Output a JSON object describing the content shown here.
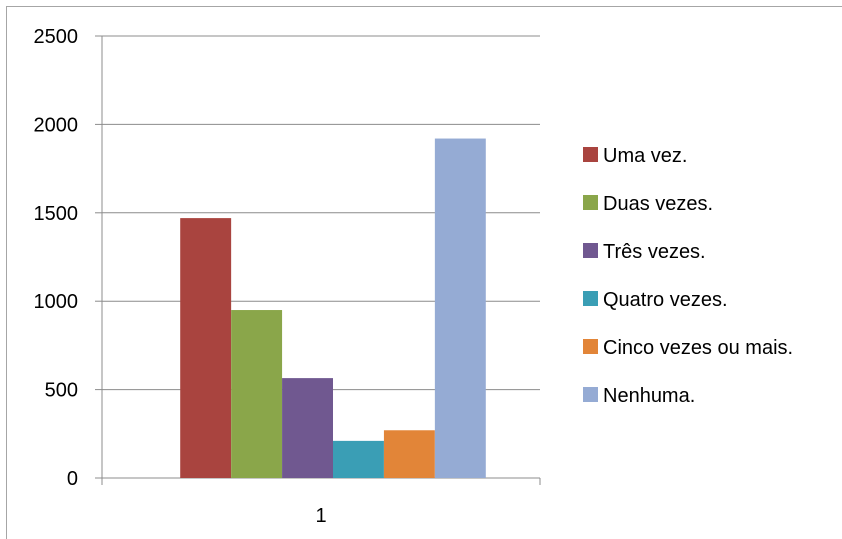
{
  "chart_data": {
    "type": "bar",
    "categories": [
      "1"
    ],
    "series": [
      {
        "name": "Uma vez.",
        "values": [
          1470
        ],
        "color": "#a9443f"
      },
      {
        "name": "Duas vezes.",
        "values": [
          950
        ],
        "color": "#8aa64a"
      },
      {
        "name": "Três vezes.",
        "values": [
          565
        ],
        "color": "#705890"
      },
      {
        "name": "Quatro vezes.",
        "values": [
          210
        ],
        "color": "#3a9eb5"
      },
      {
        "name": "Cinco vezes ou mais.",
        "values": [
          270
        ],
        "color": "#e28538"
      },
      {
        "name": "Nenhuma.",
        "values": [
          1920
        ],
        "color": "#95abd4"
      }
    ],
    "y_ticks": [
      "0",
      "500",
      "1000",
      "1500",
      "2000",
      "2500"
    ],
    "ylim": [
      0,
      2500
    ],
    "grid": true,
    "legend_position": "right"
  }
}
